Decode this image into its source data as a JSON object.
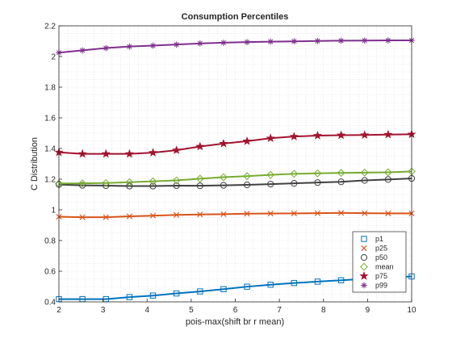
{
  "chart_data": {
    "type": "line",
    "title": "Consumption Percentiles",
    "xlabel": "pois-max(shift br r mean)",
    "ylabel": "C Distribution",
    "xlim": [
      2,
      10
    ],
    "ylim": [
      0.4,
      2.2
    ],
    "xticks": [
      2,
      3,
      4,
      5,
      6,
      7,
      8,
      9,
      10
    ],
    "yticks": [
      0.4,
      0.6,
      0.8,
      1,
      1.2,
      1.4,
      1.6,
      1.8,
      2,
      2.2
    ],
    "grid": "minor-dotted",
    "legend_position": "bottom-right",
    "x": [
      2.0,
      2.5333,
      3.0667,
      3.6,
      4.1333,
      4.6667,
      5.2,
      5.7333,
      6.2667,
      6.8,
      7.3333,
      7.8667,
      8.4,
      8.9333,
      9.4667,
      10.0
    ],
    "series": [
      {
        "name": "p1",
        "color": "#0072BD",
        "marker": "square",
        "values": [
          0.418,
          0.418,
          0.418,
          0.431,
          0.441,
          0.455,
          0.468,
          0.483,
          0.499,
          0.512,
          0.523,
          0.532,
          0.541,
          0.55,
          0.558,
          0.566
        ]
      },
      {
        "name": "p25",
        "color": "#D95319",
        "marker": "x",
        "values": [
          0.955,
          0.952,
          0.952,
          0.958,
          0.962,
          0.967,
          0.97,
          0.972,
          0.975,
          0.976,
          0.977,
          0.978,
          0.98,
          0.978,
          0.977,
          0.977
        ]
      },
      {
        "name": "p50",
        "color": "#404040",
        "marker": "circle",
        "values": [
          1.165,
          1.16,
          1.158,
          1.155,
          1.155,
          1.158,
          1.157,
          1.16,
          1.163,
          1.168,
          1.173,
          1.178,
          1.183,
          1.192,
          1.198,
          1.205
        ]
      },
      {
        "name": "mean",
        "color": "#77AC30",
        "marker": "diamond",
        "values": [
          1.172,
          1.173,
          1.175,
          1.18,
          1.186,
          1.192,
          1.203,
          1.213,
          1.22,
          1.228,
          1.235,
          1.238,
          1.241,
          1.243,
          1.245,
          1.25
        ]
      },
      {
        "name": "p75",
        "color": "#A2142F",
        "marker": "star",
        "values": [
          1.375,
          1.365,
          1.365,
          1.365,
          1.373,
          1.389,
          1.413,
          1.432,
          1.448,
          1.467,
          1.478,
          1.484,
          1.487,
          1.488,
          1.491,
          1.493
        ]
      },
      {
        "name": "p99",
        "color": "#7E2F8E",
        "marker": "asterisk",
        "values": [
          2.025,
          2.04,
          2.055,
          2.065,
          2.071,
          2.078,
          2.085,
          2.09,
          2.094,
          2.097,
          2.099,
          2.101,
          2.103,
          2.104,
          2.105,
          2.105
        ]
      }
    ]
  }
}
